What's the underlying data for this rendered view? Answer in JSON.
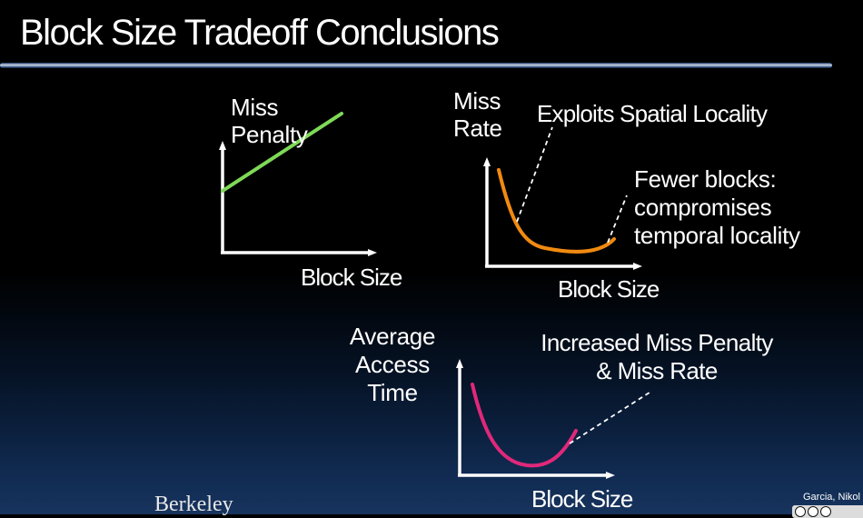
{
  "slide": {
    "title": "Block Size Tradeoff Conclusions",
    "logo_text": "Berkeley",
    "credit_text": "Garcia, Nikol"
  },
  "chart_data": [
    {
      "type": "line",
      "ylabel": "Miss Penalty",
      "xlabel": "Block Size",
      "series": [
        {
          "x": [
            0.0,
            1.0
          ],
          "y": [
            0.4,
            0.9
          ],
          "color": "#7ed957"
        }
      ]
    },
    {
      "type": "line",
      "ylabel": "Miss Rate",
      "xlabel": "Block Size",
      "annotations": [
        "Exploits Spatial Locality",
        "Fewer blocks:",
        "compromises",
        "temporal locality"
      ],
      "series": [
        {
          "color": "#f08a10"
        }
      ]
    },
    {
      "type": "line",
      "ylabel": "Average Access Time",
      "ylabel_lines": [
        "Average",
        "Access",
        "Time"
      ],
      "xlabel": "Block Size",
      "annotations": [
        "Increased Miss Penalty",
        "& Miss Rate"
      ],
      "series": [
        {
          "color": "#e0287a"
        }
      ]
    }
  ],
  "colors": {
    "background": "#000000",
    "text": "#ffffff",
    "axis": "#ffffff",
    "miss_penalty_line": "#7ed957",
    "miss_rate_curve": "#f08a10",
    "access_time_curve": "#e0287a",
    "title_rule": "#cfd8e8"
  }
}
